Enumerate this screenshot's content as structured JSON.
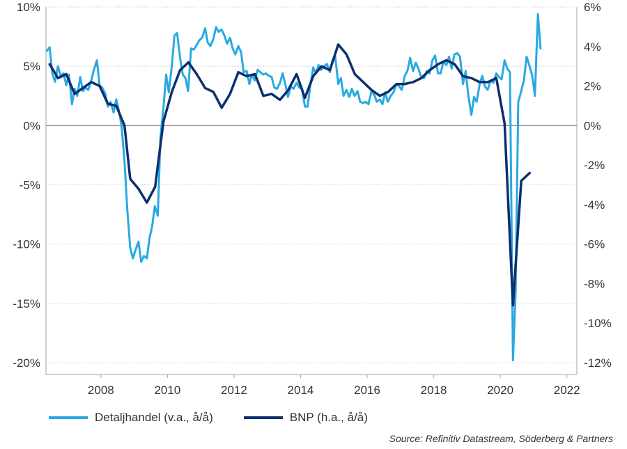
{
  "chart_data": {
    "type": "line",
    "x_ticks": [
      "2008",
      "2010",
      "2012",
      "2014",
      "2016",
      "2018",
      "2020",
      "2022"
    ],
    "xlim": [
      2006.35,
      2022.3
    ],
    "y_left": {
      "lim": [
        -21,
        10
      ],
      "ticks": [
        10,
        5,
        0,
        -5,
        -10,
        -15,
        -20
      ],
      "tick_labels": [
        "10%",
        "5%",
        "0%",
        "-5%",
        "-10%",
        "-15%",
        "-20%"
      ]
    },
    "y_right": {
      "lim": [
        -12.6,
        6
      ],
      "ticks": [
        6,
        4,
        2,
        0,
        -2,
        -4,
        -6,
        -8,
        -10,
        -12
      ],
      "tick_labels": [
        "6%",
        "4%",
        "2%",
        "0%",
        "-2%",
        "-4%",
        "-6%",
        "-8%",
        "-10%",
        "-12%"
      ]
    },
    "grid": true,
    "legend_position": "bottom",
    "series": [
      {
        "name": "Detaljhandel (v.a., å/å)",
        "axis": "left",
        "color": "#29a9e1",
        "points": [
          [
            2006.38,
            6.3
          ],
          [
            2006.46,
            6.6
          ],
          [
            2006.54,
            4.4
          ],
          [
            2006.62,
            3.7
          ],
          [
            2006.71,
            5.0
          ],
          [
            2006.79,
            4.2
          ],
          [
            2006.88,
            4.4
          ],
          [
            2006.96,
            3.4
          ],
          [
            2007.04,
            4.3
          ],
          [
            2007.13,
            1.8
          ],
          [
            2007.21,
            3.1
          ],
          [
            2007.29,
            2.5
          ],
          [
            2007.38,
            4.1
          ],
          [
            2007.46,
            2.9
          ],
          [
            2007.54,
            3.2
          ],
          [
            2007.62,
            3.0
          ],
          [
            2007.71,
            3.8
          ],
          [
            2007.79,
            4.7
          ],
          [
            2007.88,
            5.5
          ],
          [
            2007.96,
            3.4
          ],
          [
            2008.04,
            3.2
          ],
          [
            2008.13,
            2.7
          ],
          [
            2008.21,
            1.6
          ],
          [
            2008.29,
            2.0
          ],
          [
            2008.38,
            1.1
          ],
          [
            2008.46,
            2.2
          ],
          [
            2008.54,
            1.3
          ],
          [
            2008.62,
            0.0
          ],
          [
            2008.71,
            -3.0
          ],
          [
            2008.79,
            -7.0
          ],
          [
            2008.88,
            -10.3
          ],
          [
            2008.96,
            -11.2
          ],
          [
            2009.04,
            -10.5
          ],
          [
            2009.13,
            -9.8
          ],
          [
            2009.21,
            -11.5
          ],
          [
            2009.29,
            -11.0
          ],
          [
            2009.38,
            -11.2
          ],
          [
            2009.46,
            -9.5
          ],
          [
            2009.54,
            -8.5
          ],
          [
            2009.62,
            -6.8
          ],
          [
            2009.71,
            -7.6
          ],
          [
            2009.79,
            -1.0
          ],
          [
            2009.88,
            1.5
          ],
          [
            2009.96,
            4.3
          ],
          [
            2010.04,
            2.8
          ],
          [
            2010.13,
            5.0
          ],
          [
            2010.21,
            7.6
          ],
          [
            2010.29,
            7.8
          ],
          [
            2010.38,
            5.7
          ],
          [
            2010.46,
            4.3
          ],
          [
            2010.54,
            4.0
          ],
          [
            2010.62,
            2.9
          ],
          [
            2010.71,
            6.5
          ],
          [
            2010.79,
            6.4
          ],
          [
            2010.88,
            6.8
          ],
          [
            2010.96,
            7.2
          ],
          [
            2011.04,
            7.4
          ],
          [
            2011.13,
            8.2
          ],
          [
            2011.21,
            7.0
          ],
          [
            2011.29,
            6.7
          ],
          [
            2011.38,
            7.3
          ],
          [
            2011.46,
            8.3
          ],
          [
            2011.54,
            7.9
          ],
          [
            2011.62,
            8.1
          ],
          [
            2011.71,
            7.6
          ],
          [
            2011.79,
            6.9
          ],
          [
            2011.88,
            7.4
          ],
          [
            2011.96,
            6.5
          ],
          [
            2012.04,
            6.0
          ],
          [
            2012.13,
            6.7
          ],
          [
            2012.21,
            6.2
          ],
          [
            2012.29,
            4.5
          ],
          [
            2012.38,
            4.6
          ],
          [
            2012.46,
            3.5
          ],
          [
            2012.54,
            4.3
          ],
          [
            2012.62,
            3.8
          ],
          [
            2012.71,
            4.7
          ],
          [
            2012.79,
            4.5
          ],
          [
            2012.88,
            4.3
          ],
          [
            2012.96,
            4.4
          ],
          [
            2013.04,
            4.2
          ],
          [
            2013.13,
            4.1
          ],
          [
            2013.21,
            3.2
          ],
          [
            2013.29,
            3.1
          ],
          [
            2013.38,
            3.6
          ],
          [
            2013.46,
            4.4
          ],
          [
            2013.54,
            3.5
          ],
          [
            2013.62,
            2.4
          ],
          [
            2013.71,
            3.3
          ],
          [
            2013.79,
            3.1
          ],
          [
            2013.88,
            3.6
          ],
          [
            2013.96,
            3.2
          ],
          [
            2014.04,
            3.1
          ],
          [
            2014.13,
            1.6
          ],
          [
            2014.21,
            1.6
          ],
          [
            2014.29,
            3.3
          ],
          [
            2014.38,
            4.9
          ],
          [
            2014.46,
            4.4
          ],
          [
            2014.54,
            5.1
          ],
          [
            2014.62,
            4.7
          ],
          [
            2014.71,
            5.0
          ],
          [
            2014.79,
            5.2
          ],
          [
            2014.88,
            4.5
          ],
          [
            2014.96,
            5.5
          ],
          [
            2015.04,
            5.8
          ],
          [
            2015.13,
            3.5
          ],
          [
            2015.21,
            4.0
          ],
          [
            2015.29,
            2.5
          ],
          [
            2015.38,
            3.0
          ],
          [
            2015.46,
            2.4
          ],
          [
            2015.54,
            3.1
          ],
          [
            2015.62,
            2.5
          ],
          [
            2015.71,
            2.9
          ],
          [
            2015.79,
            2.0
          ],
          [
            2015.88,
            1.9
          ],
          [
            2015.96,
            2.0
          ],
          [
            2016.04,
            1.8
          ],
          [
            2016.13,
            2.9
          ],
          [
            2016.21,
            2.6
          ],
          [
            2016.29,
            2.0
          ],
          [
            2016.38,
            2.2
          ],
          [
            2016.46,
            1.8
          ],
          [
            2016.54,
            2.8
          ],
          [
            2016.62,
            2.0
          ],
          [
            2016.71,
            2.5
          ],
          [
            2016.79,
            2.8
          ],
          [
            2016.88,
            3.5
          ],
          [
            2016.96,
            3.3
          ],
          [
            2017.04,
            3.0
          ],
          [
            2017.13,
            4.2
          ],
          [
            2017.21,
            4.6
          ],
          [
            2017.29,
            5.7
          ],
          [
            2017.38,
            4.6
          ],
          [
            2017.46,
            5.3
          ],
          [
            2017.54,
            4.8
          ],
          [
            2017.62,
            4.1
          ],
          [
            2017.71,
            4.0
          ],
          [
            2017.79,
            4.6
          ],
          [
            2017.88,
            4.4
          ],
          [
            2017.96,
            5.5
          ],
          [
            2018.04,
            5.9
          ],
          [
            2018.13,
            4.4
          ],
          [
            2018.21,
            4.4
          ],
          [
            2018.29,
            5.4
          ],
          [
            2018.38,
            5.1
          ],
          [
            2018.46,
            5.8
          ],
          [
            2018.54,
            4.8
          ],
          [
            2018.62,
            6.0
          ],
          [
            2018.71,
            6.1
          ],
          [
            2018.79,
            5.8
          ],
          [
            2018.88,
            3.5
          ],
          [
            2018.96,
            4.6
          ],
          [
            2019.04,
            2.5
          ],
          [
            2019.13,
            0.9
          ],
          [
            2019.21,
            2.4
          ],
          [
            2019.29,
            2.0
          ],
          [
            2019.38,
            3.5
          ],
          [
            2019.46,
            4.2
          ],
          [
            2019.54,
            3.3
          ],
          [
            2019.62,
            3.0
          ],
          [
            2019.71,
            3.8
          ],
          [
            2019.79,
            3.6
          ],
          [
            2019.88,
            4.4
          ],
          [
            2019.96,
            4.1
          ],
          [
            2020.04,
            3.9
          ],
          [
            2020.13,
            5.5
          ],
          [
            2020.21,
            4.8
          ],
          [
            2020.29,
            4.5
          ],
          [
            2020.38,
            -19.8
          ],
          [
            2020.46,
            -14.0
          ],
          [
            2020.54,
            2.0
          ],
          [
            2020.62,
            2.8
          ],
          [
            2020.71,
            3.8
          ],
          [
            2020.79,
            5.8
          ],
          [
            2020.88,
            5.0
          ],
          [
            2020.96,
            4.2
          ],
          [
            2021.04,
            2.5
          ],
          [
            2021.13,
            9.4
          ],
          [
            2021.21,
            6.5
          ]
        ]
      },
      {
        "name": "BNP (h.a., å/å)",
        "axis": "right",
        "color": "#0d2f6e",
        "points": [
          [
            2006.46,
            3.1
          ],
          [
            2006.71,
            2.4
          ],
          [
            2006.96,
            2.6
          ],
          [
            2007.21,
            1.6
          ],
          [
            2007.46,
            1.9
          ],
          [
            2007.71,
            2.2
          ],
          [
            2007.96,
            2.0
          ],
          [
            2008.21,
            1.1
          ],
          [
            2008.46,
            1.0
          ],
          [
            2008.71,
            0.0
          ],
          [
            2008.88,
            -2.7
          ],
          [
            2009.13,
            -3.2
          ],
          [
            2009.38,
            -3.9
          ],
          [
            2009.63,
            -3.1
          ],
          [
            2009.88,
            0.2
          ],
          [
            2010.13,
            1.7
          ],
          [
            2010.38,
            2.8
          ],
          [
            2010.63,
            3.2
          ],
          [
            2010.88,
            2.6
          ],
          [
            2011.13,
            1.9
          ],
          [
            2011.38,
            1.7
          ],
          [
            2011.63,
            0.9
          ],
          [
            2011.88,
            1.6
          ],
          [
            2012.13,
            2.7
          ],
          [
            2012.38,
            2.5
          ],
          [
            2012.63,
            2.6
          ],
          [
            2012.88,
            1.5
          ],
          [
            2013.13,
            1.6
          ],
          [
            2013.38,
            1.3
          ],
          [
            2013.63,
            1.8
          ],
          [
            2013.88,
            2.6
          ],
          [
            2014.13,
            1.4
          ],
          [
            2014.38,
            2.5
          ],
          [
            2014.63,
            3.0
          ],
          [
            2014.88,
            2.8
          ],
          [
            2015.13,
            4.1
          ],
          [
            2015.38,
            3.6
          ],
          [
            2015.63,
            2.6
          ],
          [
            2015.88,
            2.2
          ],
          [
            2016.13,
            1.8
          ],
          [
            2016.38,
            1.5
          ],
          [
            2016.63,
            1.7
          ],
          [
            2016.88,
            2.1
          ],
          [
            2017.13,
            2.1
          ],
          [
            2017.38,
            2.2
          ],
          [
            2017.63,
            2.4
          ],
          [
            2017.88,
            2.8
          ],
          [
            2018.13,
            3.1
          ],
          [
            2018.38,
            3.3
          ],
          [
            2018.63,
            3.1
          ],
          [
            2018.88,
            2.5
          ],
          [
            2019.13,
            2.4
          ],
          [
            2019.38,
            2.2
          ],
          [
            2019.63,
            2.2
          ],
          [
            2019.88,
            2.4
          ],
          [
            2020.13,
            0.1
          ],
          [
            2020.38,
            -9.1
          ],
          [
            2020.63,
            -2.8
          ],
          [
            2020.88,
            -2.4
          ]
        ]
      }
    ]
  },
  "legend": {
    "items": [
      {
        "label": "Detaljhandel (v.a., å/å)",
        "color": "#29a9e1"
      },
      {
        "label": "BNP (h.a., å/å)",
        "color": "#0d2f6e"
      }
    ]
  },
  "source": "Source: Refinitiv Datastream, Söderberg & Partners"
}
